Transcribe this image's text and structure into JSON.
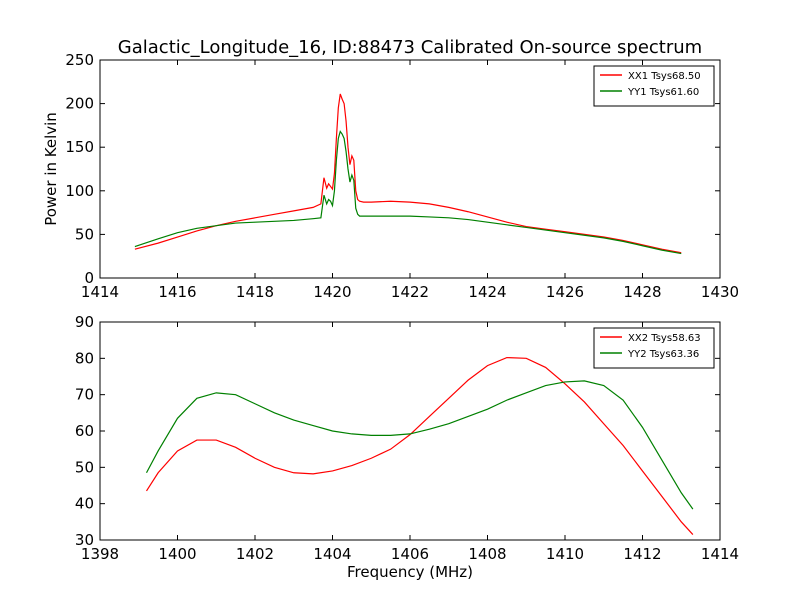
{
  "chart_data": [
    {
      "type": "line",
      "title": "Galactic_Longitude_16, ID:88473 Calibrated On-source spectrum",
      "xlabel": "",
      "ylabel": "Power in Kelvin",
      "xlim": [
        1414,
        1430
      ],
      "ylim": [
        0,
        250
      ],
      "xticks": [
        1414,
        1416,
        1418,
        1420,
        1422,
        1424,
        1426,
        1428,
        1430
      ],
      "yticks": [
        0,
        50,
        100,
        150,
        200,
        250
      ],
      "legend_position": "top-right",
      "grid": false,
      "series": [
        {
          "name": "XX1 Tsys68.50",
          "color": "#ff0000",
          "x": [
            1414.9,
            1415.5,
            1416.0,
            1416.5,
            1417.0,
            1417.5,
            1418.0,
            1418.5,
            1419.0,
            1419.5,
            1419.7,
            1419.78,
            1419.85,
            1419.9,
            1419.95,
            1420.0,
            1420.05,
            1420.1,
            1420.15,
            1420.2,
            1420.25,
            1420.3,
            1420.35,
            1420.4,
            1420.45,
            1420.5,
            1420.55,
            1420.6,
            1420.65,
            1420.7,
            1420.8,
            1421.0,
            1421.5,
            1422.0,
            1422.5,
            1423.0,
            1423.5,
            1424.0,
            1424.5,
            1425.0,
            1425.5,
            1426.0,
            1426.5,
            1427.0,
            1427.5,
            1428.0,
            1428.5,
            1429.0
          ],
          "y": [
            33,
            40,
            47,
            54,
            60,
            65,
            69,
            73,
            77,
            81,
            85,
            115,
            103,
            108,
            105,
            102,
            120,
            160,
            195,
            211,
            205,
            200,
            180,
            150,
            130,
            140,
            135,
            100,
            90,
            88,
            87,
            87,
            88,
            87,
            85,
            81,
            76,
            70,
            64,
            59,
            56,
            53,
            50,
            47,
            43,
            38,
            33,
            29
          ]
        },
        {
          "name": "YY1 Tsys61.60",
          "color": "#008000",
          "x": [
            1414.9,
            1415.5,
            1416.0,
            1416.5,
            1417.0,
            1417.5,
            1418.0,
            1418.5,
            1419.0,
            1419.5,
            1419.7,
            1419.78,
            1419.85,
            1419.9,
            1419.95,
            1420.0,
            1420.05,
            1420.1,
            1420.15,
            1420.2,
            1420.25,
            1420.3,
            1420.35,
            1420.4,
            1420.45,
            1420.5,
            1420.55,
            1420.6,
            1420.65,
            1420.7,
            1420.8,
            1421.0,
            1421.5,
            1422.0,
            1422.5,
            1423.0,
            1423.5,
            1424.0,
            1424.5,
            1425.0,
            1425.5,
            1426.0,
            1426.5,
            1427.0,
            1427.5,
            1428.0,
            1428.5,
            1429.0
          ],
          "y": [
            36,
            45,
            52,
            57,
            60,
            63,
            64,
            65,
            66,
            68,
            69,
            95,
            85,
            90,
            88,
            83,
            100,
            135,
            160,
            168,
            165,
            160,
            145,
            125,
            110,
            118,
            112,
            80,
            73,
            71,
            71,
            71,
            71,
            71,
            70,
            69,
            67,
            64,
            61,
            58,
            55,
            52,
            49,
            46,
            42,
            37,
            32,
            28
          ]
        }
      ]
    },
    {
      "type": "line",
      "title": "",
      "xlabel": "Frequency (MHz)",
      "ylabel": "",
      "xlim": [
        1398,
        1414
      ],
      "ylim": [
        30,
        90
      ],
      "xticks": [
        1398,
        1400,
        1402,
        1404,
        1406,
        1408,
        1410,
        1412,
        1414
      ],
      "yticks": [
        30,
        40,
        50,
        60,
        70,
        80,
        90
      ],
      "legend_position": "top-right",
      "grid": false,
      "series": [
        {
          "name": "XX2 Tsys58.63",
          "color": "#ff0000",
          "x": [
            1399.2,
            1399.5,
            1400.0,
            1400.5,
            1401.0,
            1401.5,
            1402.0,
            1402.5,
            1403.0,
            1403.5,
            1404.0,
            1404.5,
            1405.0,
            1405.5,
            1406.0,
            1406.5,
            1407.0,
            1407.5,
            1408.0,
            1408.5,
            1409.0,
            1409.5,
            1410.0,
            1410.5,
            1411.0,
            1411.5,
            1412.0,
            1412.5,
            1413.0,
            1413.3
          ],
          "y": [
            43.5,
            48.5,
            54.5,
            57.5,
            57.5,
            55.5,
            52.5,
            50.0,
            48.5,
            48.2,
            49.0,
            50.5,
            52.5,
            55.0,
            59.0,
            64.0,
            69.0,
            74.0,
            78.0,
            80.2,
            80.0,
            77.5,
            73.0,
            68.0,
            62.0,
            56.0,
            49.0,
            42.0,
            35.0,
            31.5
          ]
        },
        {
          "name": "YY2 Tsys63.36",
          "color": "#008000",
          "x": [
            1399.2,
            1399.5,
            1400.0,
            1400.5,
            1401.0,
            1401.5,
            1402.0,
            1402.5,
            1403.0,
            1403.5,
            1404.0,
            1404.5,
            1405.0,
            1405.5,
            1406.0,
            1406.5,
            1407.0,
            1407.5,
            1408.0,
            1408.5,
            1409.0,
            1409.5,
            1410.0,
            1410.5,
            1411.0,
            1411.5,
            1412.0,
            1412.5,
            1413.0,
            1413.3
          ],
          "y": [
            48.5,
            54.5,
            63.5,
            69.0,
            70.5,
            70.0,
            67.5,
            65.0,
            63.0,
            61.5,
            60.0,
            59.2,
            58.8,
            58.8,
            59.2,
            60.5,
            62.0,
            64.0,
            66.0,
            68.5,
            70.5,
            72.5,
            73.5,
            73.8,
            72.5,
            68.5,
            61.0,
            52.0,
            43.0,
            38.5
          ]
        }
      ]
    }
  ]
}
